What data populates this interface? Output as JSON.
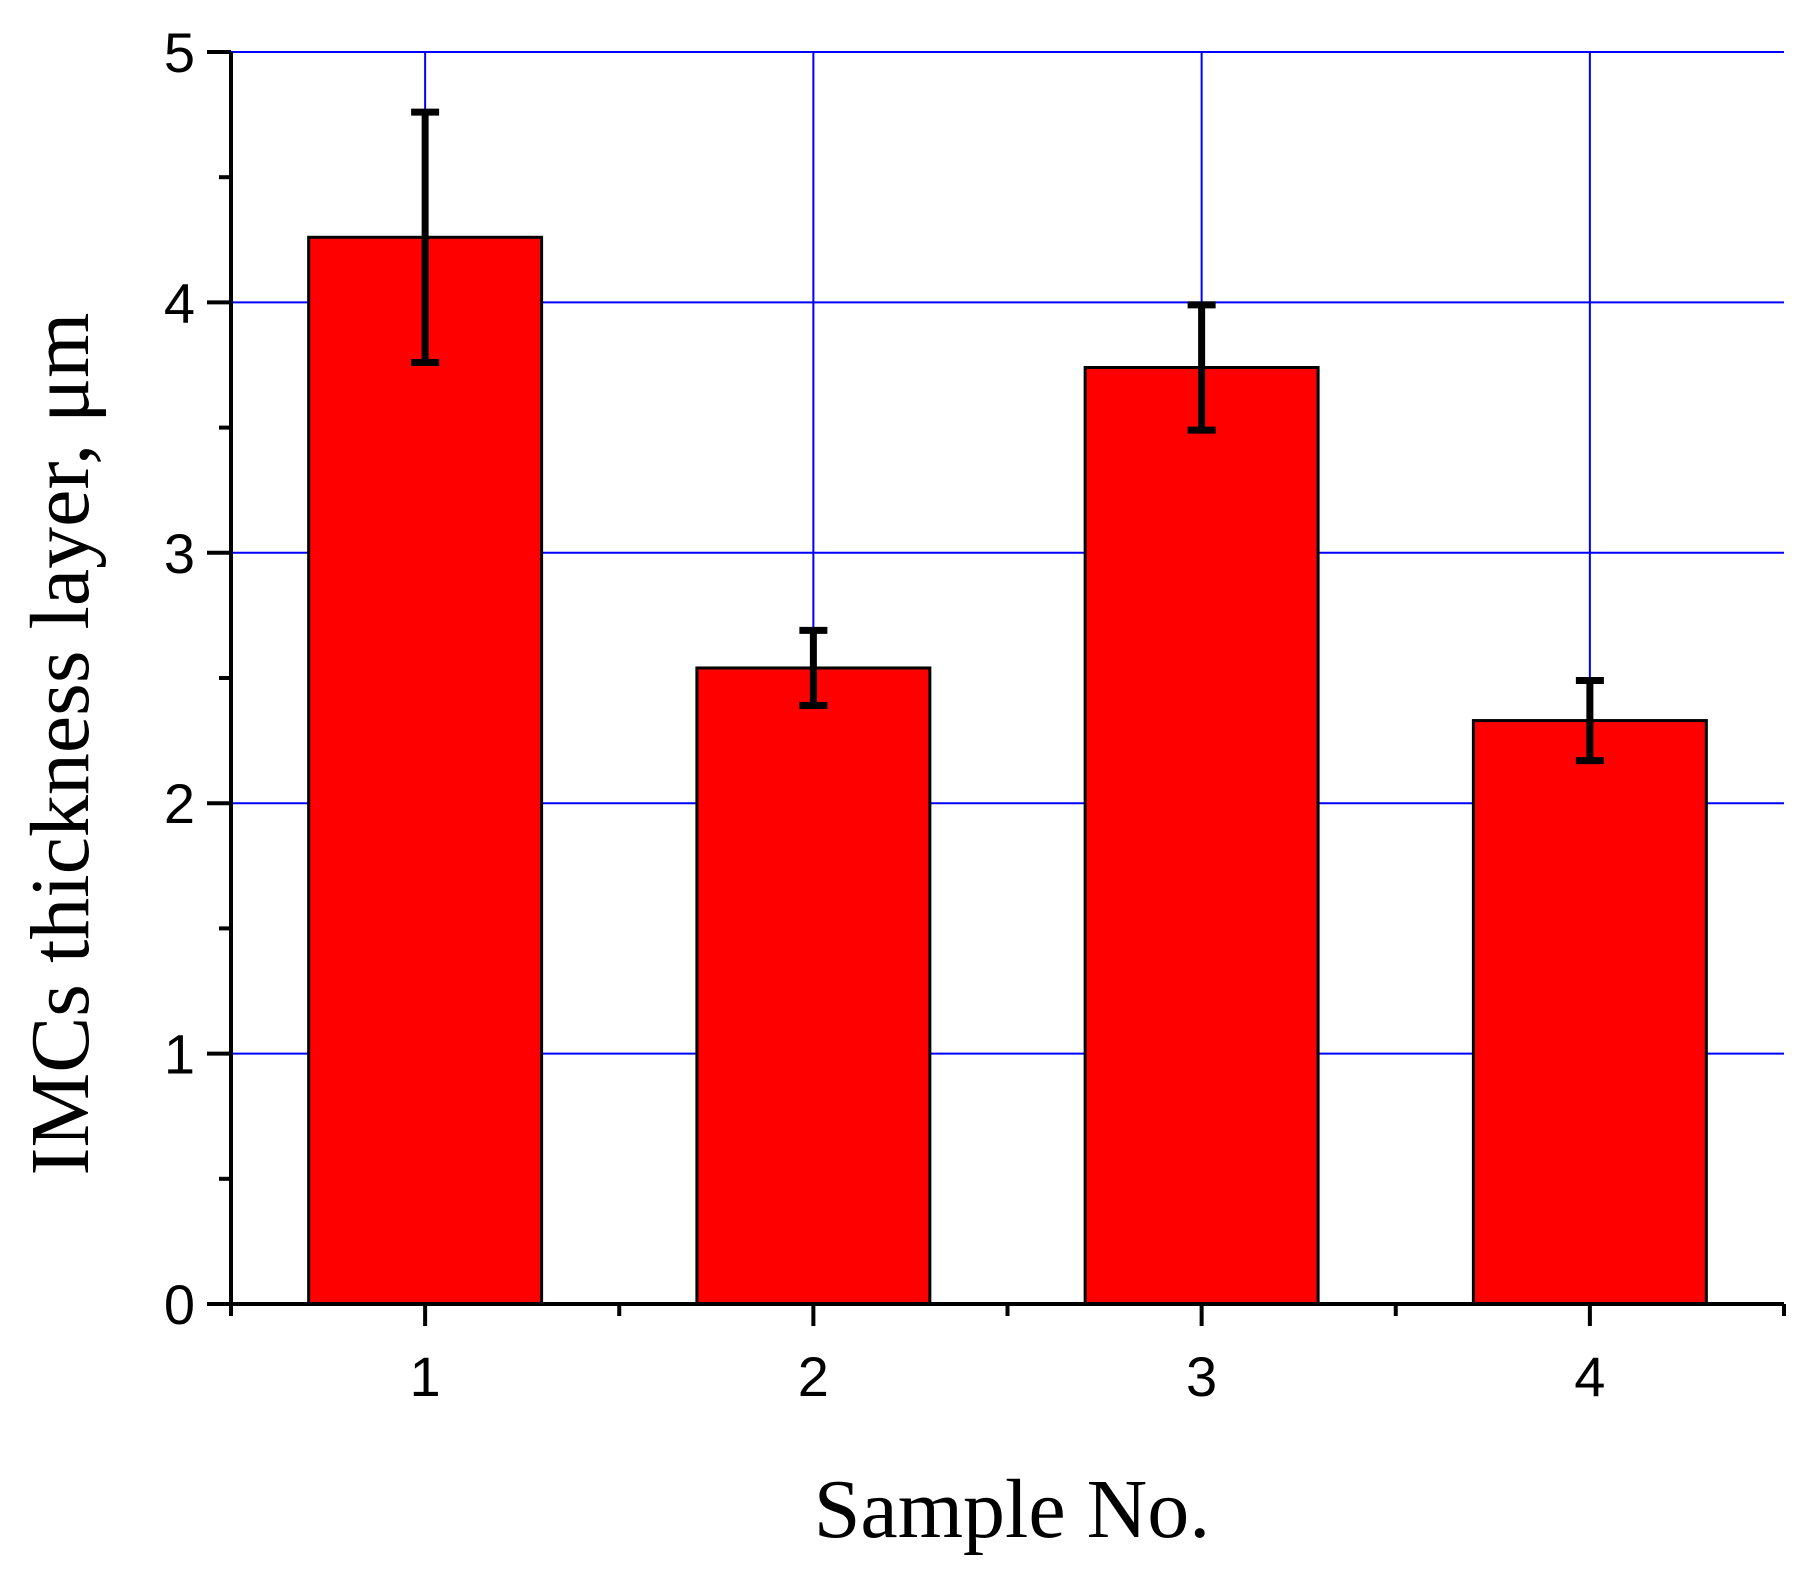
{
  "chart_data": {
    "type": "bar",
    "title": "",
    "xlabel": "Sample No.",
    "ylabel": "IMCs thickness layer, μm",
    "categories": [
      "1",
      "2",
      "3",
      "4"
    ],
    "series": [
      {
        "values": [
          4.26,
          2.54,
          3.74,
          2.33
        ],
        "errors": [
          0.5,
          0.15,
          0.25,
          0.16
        ]
      }
    ],
    "xlim": [
      0.5,
      4.5
    ],
    "ylim": [
      0,
      5
    ],
    "yticks": [
      "0",
      "1",
      "2",
      "3",
      "4",
      "5"
    ],
    "xticks": [
      "1",
      "2",
      "3",
      "4"
    ],
    "grid": true,
    "colors": {
      "bar_fill": "#ff0000",
      "bar_stroke": "#000000",
      "grid": "#0000ff",
      "axis": "#000000",
      "error_bar": "#000000"
    }
  }
}
